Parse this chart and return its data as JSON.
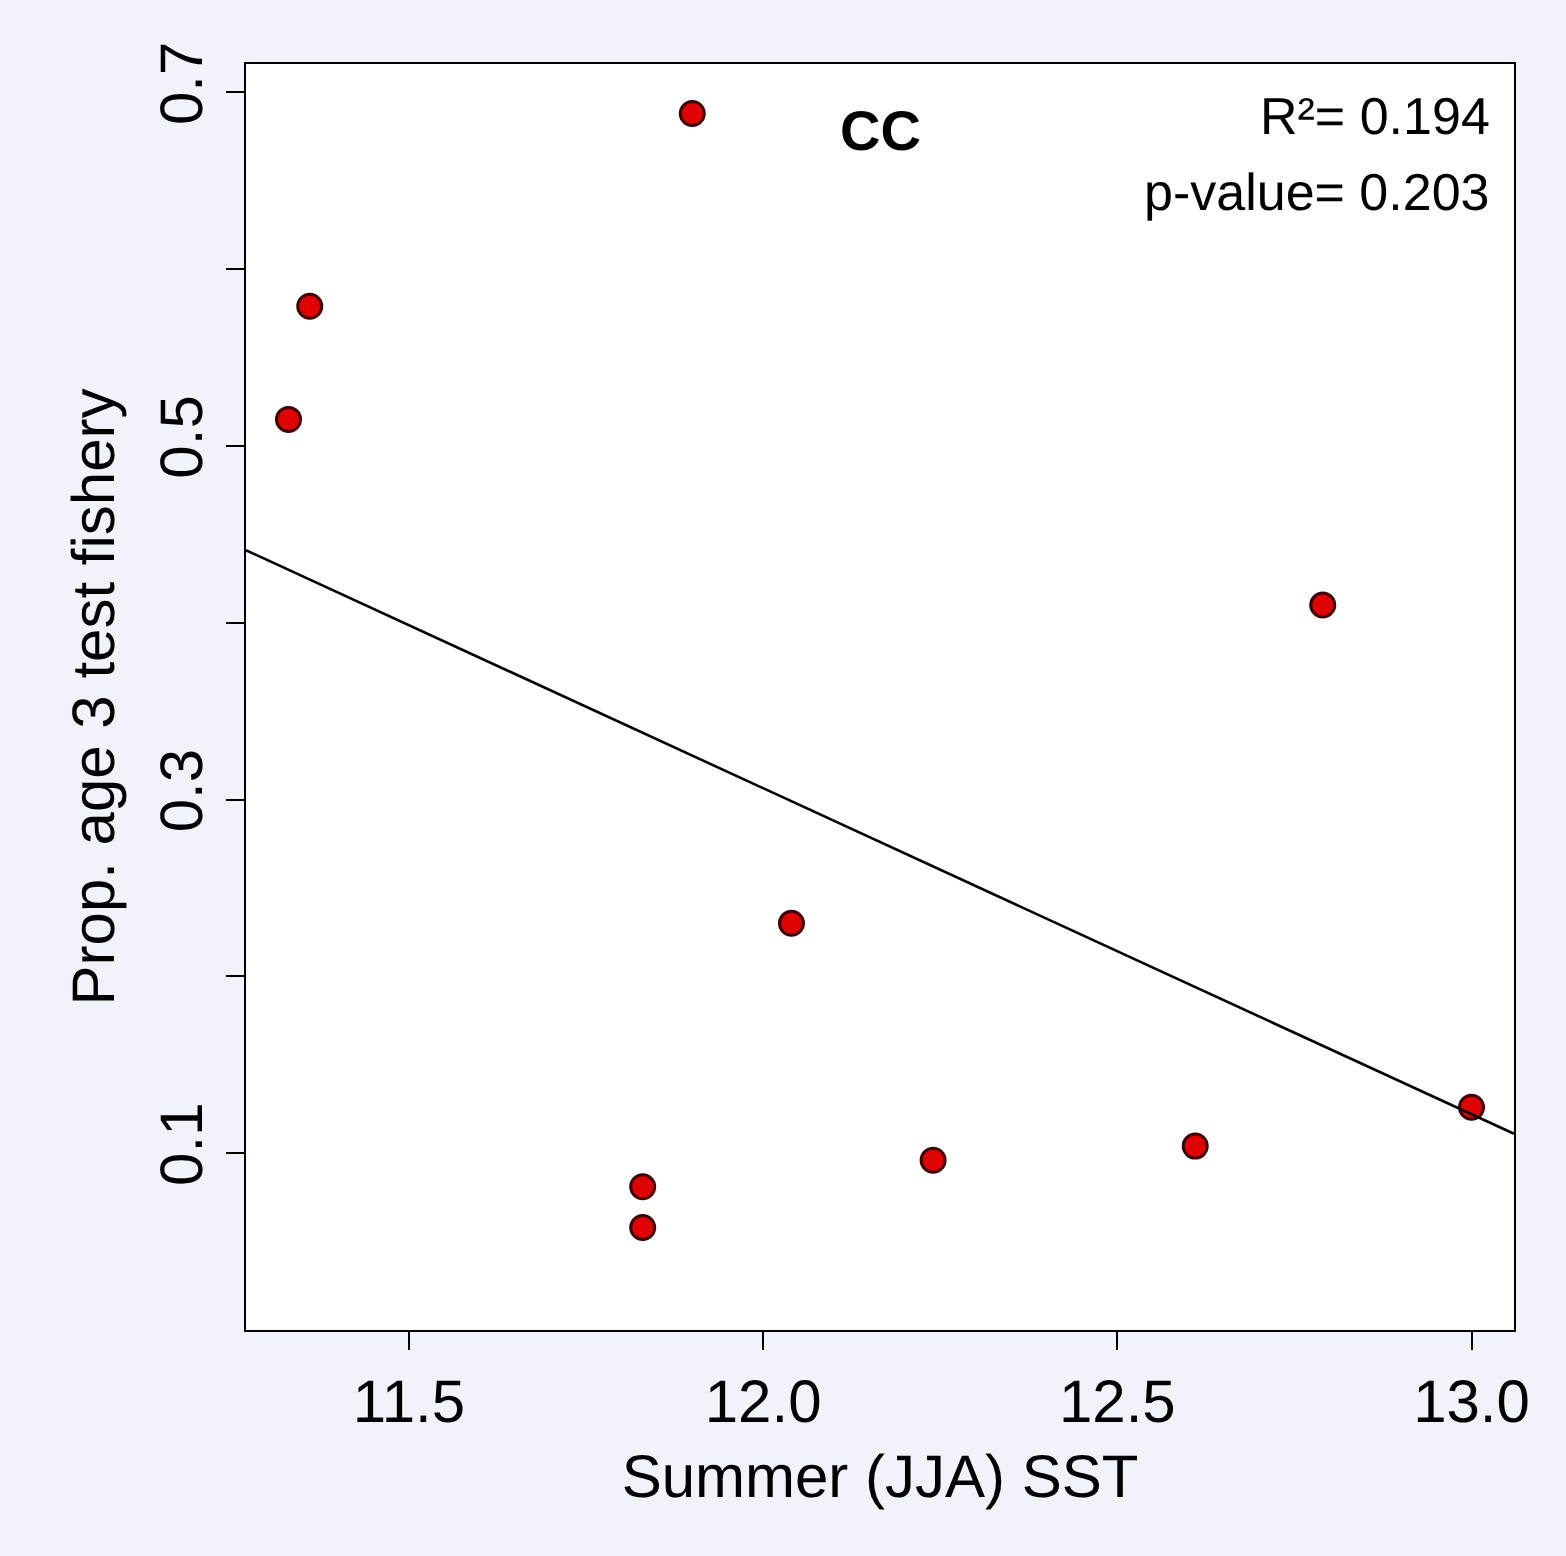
{
  "chart_data": {
    "type": "scatter",
    "xlabel": "Summer (JJA) SST",
    "ylabel": "Prop. age 3 test fishery",
    "xlim": [
      11.27,
      13.06
    ],
    "xticks": [
      11.5,
      {
        "value": 12,
        "label": "12.0"
      },
      12.5,
      {
        "value": 13,
        "label": "13.0"
      }
    ],
    "ylim": [
      0,
      0.716
    ],
    "yticks": [
      {
        "value": 0.1,
        "label": "0.1"
      },
      {
        "value": 0.2,
        "label": null
      },
      {
        "value": 0.3,
        "label": "0.3"
      },
      {
        "value": 0.4,
        "label": null
      },
      {
        "value": 0.5,
        "label": "0.5"
      },
      {
        "value": 0.6,
        "label": null
      },
      {
        "value": 0.7,
        "label": "0.7"
      }
    ],
    "grid": false,
    "marker": "circle",
    "series": [
      {
        "color": "#e00000",
        "x": [
          11.33,
          11.36,
          11.9,
          12.04,
          11.83,
          11.83,
          12.24,
          12.61,
          12.79,
          13.0
        ],
        "values": [
          0.515,
          0.579,
          0.688,
          0.23,
          0.081,
          0.058,
          0.096,
          0.104,
          0.41,
          0.126
        ]
      },
      {
        "type": "line",
        "marker": "none",
        "color": "#000000",
        "x": [
          11.27,
          13.06
        ],
        "values": [
          0.441,
          0.111
        ]
      }
    ],
    "annotations": [
      "CC",
      "R²= 0.194",
      "p-value= 0.203"
    ]
  }
}
